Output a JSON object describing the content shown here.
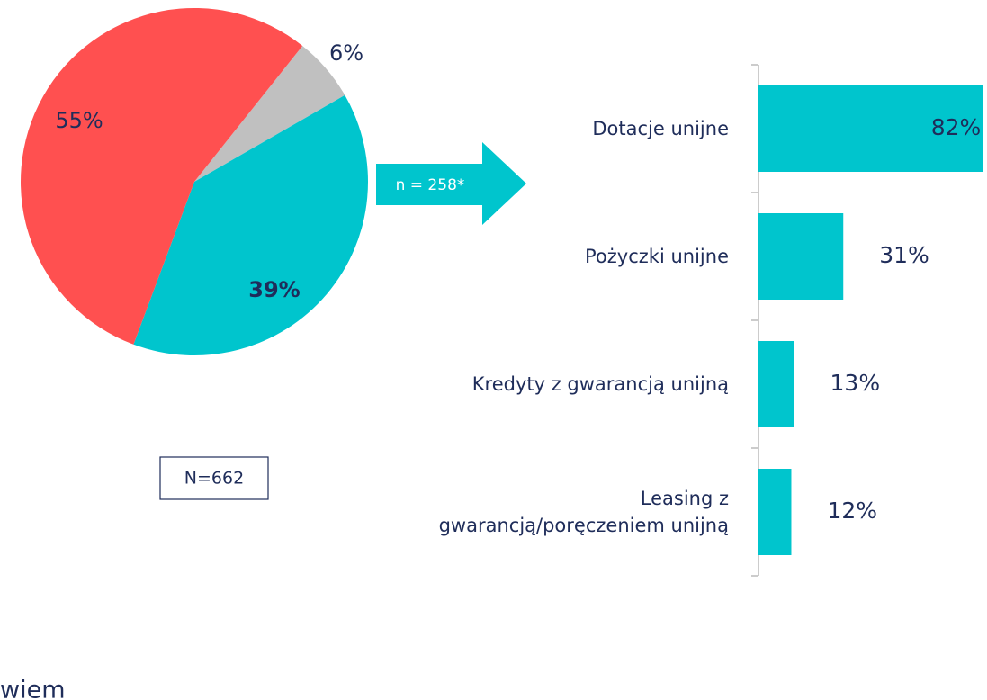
{
  "chart_data": [
    {
      "type": "pie",
      "values": [
        6,
        39,
        55
      ],
      "value_labels": [
        "6%",
        "39%",
        "55%"
      ],
      "colors": [
        "#c0c0c0",
        "#00c5cd",
        "#ff5050"
      ]
    },
    {
      "type": "bar",
      "orientation": "horizontal",
      "categories": [
        "Dotacje unijne",
        "Pożyczki unijne",
        "Kredyty z gwarancją unijną",
        "Leasing z\ngwarancją/poręczeniem unijną"
      ],
      "values": [
        82,
        31,
        13,
        12
      ],
      "value_labels": [
        "82%",
        "31%",
        "13%",
        "12%"
      ],
      "color": "#00c5cd"
    }
  ],
  "annotations": [
    "n = 258*",
    "N=662",
    "wiem"
  ]
}
